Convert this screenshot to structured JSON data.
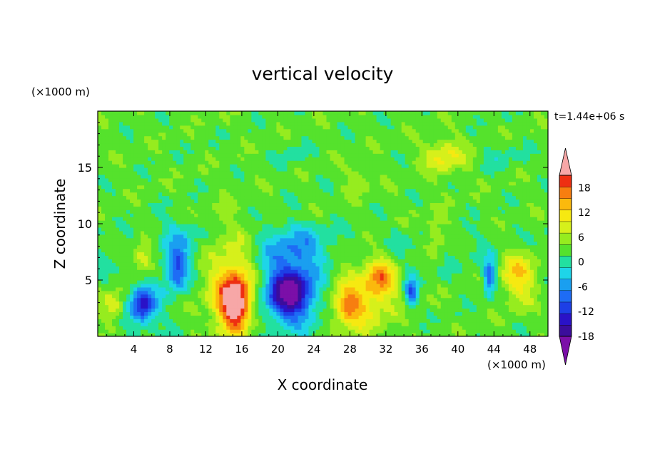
{
  "chart_data": {
    "type": "heatmap",
    "title": "vertical velocity",
    "xlabel": "X coordinate",
    "ylabel": "Z coordinate",
    "x_unit": "(×1000 m)",
    "y_unit": "(×1000 m)",
    "time_label": "t=1.44e+06 s",
    "xlim": [
      0,
      50
    ],
    "ylim": [
      0,
      20
    ],
    "x_ticks": [
      4,
      8,
      12,
      16,
      20,
      24,
      28,
      32,
      36,
      40,
      44,
      48
    ],
    "y_ticks": [
      5,
      10,
      15
    ],
    "colorbar": {
      "labels": [
        18,
        12,
        6,
        0,
        -6,
        -12,
        -18
      ],
      "levels": [
        -21,
        -18,
        -15,
        -12,
        -9,
        -6,
        -3,
        0,
        3,
        6,
        9,
        12,
        15,
        18,
        21
      ],
      "colors": [
        "#7b0fa8",
        "#3b0d9c",
        "#2a12c7",
        "#1d3fe6",
        "#1e6cf5",
        "#1a9ff0",
        "#1ed5e8",
        "#22e0a0",
        "#55e22c",
        "#96ec1f",
        "#d6f01b",
        "#f6e911",
        "#fbb90d",
        "#f77e10",
        "#ee2f12",
        "#f7a7a7"
      ]
    },
    "features": [
      {
        "x": 15.3,
        "z": 3.0,
        "value": 18.5,
        "sx": 1.1,
        "sz": 1.5
      },
      {
        "x": 15.0,
        "z": 4.5,
        "value": 12,
        "sx": 2.0,
        "sz": 3.2
      },
      {
        "x": 29.0,
        "z": 3.5,
        "value": 9,
        "sx": 2.6,
        "sz": 2.4
      },
      {
        "x": 31.5,
        "z": 5.2,
        "value": 11,
        "sx": 1.1,
        "sz": 1.2
      },
      {
        "x": 27.8,
        "z": 2.6,
        "value": 10,
        "sx": 1.0,
        "sz": 0.9
      },
      {
        "x": 46.8,
        "z": 5.5,
        "value": 11,
        "sx": 1.4,
        "sz": 1.6
      },
      {
        "x": 5.0,
        "z": 7.0,
        "value": 9,
        "sx": 0.9,
        "sz": 1.0
      },
      {
        "x": 1.8,
        "z": 2.8,
        "value": 9,
        "sx": 0.9,
        "sz": 0.9
      },
      {
        "x": 38.5,
        "z": 16.0,
        "value": 8,
        "sx": 1.6,
        "sz": 1.1
      },
      {
        "x": 37.5,
        "z": 9.0,
        "value": 6,
        "sx": 0.8,
        "sz": 1.2
      },
      {
        "x": 21.3,
        "z": 3.8,
        "value": -18,
        "sx": 1.6,
        "sz": 1.4
      },
      {
        "x": 21.5,
        "z": 4.2,
        "value": -9,
        "sx": 3.0,
        "sz": 2.8
      },
      {
        "x": 5.0,
        "z": 2.8,
        "value": -14,
        "sx": 0.9,
        "sz": 1.0
      },
      {
        "x": 5.0,
        "z": 2.8,
        "value": -5,
        "sx": 1.8,
        "sz": 1.8
      },
      {
        "x": 8.8,
        "z": 6.0,
        "value": -14,
        "sx": 0.9,
        "sz": 1.3
      },
      {
        "x": 34.8,
        "z": 4.0,
        "value": -13,
        "sx": 0.5,
        "sz": 1.0
      },
      {
        "x": 43.5,
        "z": 5.3,
        "value": -13,
        "sx": 0.5,
        "sz": 1.1
      },
      {
        "x": 22.0,
        "z": 8.0,
        "value": -5,
        "sx": 2.5,
        "sz": 1.4
      },
      {
        "x": 9.0,
        "z": 9.0,
        "value": -4,
        "sx": 1.5,
        "sz": 1.3
      },
      {
        "x": 21.5,
        "z": 16.0,
        "value": -3,
        "sx": 1.2,
        "sz": 0.8
      },
      {
        "x": 45.0,
        "z": 16.0,
        "value": -3,
        "sx": 1.4,
        "sz": 0.7
      },
      {
        "x": 29.0,
        "z": 14.0,
        "value": 4,
        "sx": 1.0,
        "sz": 0.8
      }
    ]
  }
}
